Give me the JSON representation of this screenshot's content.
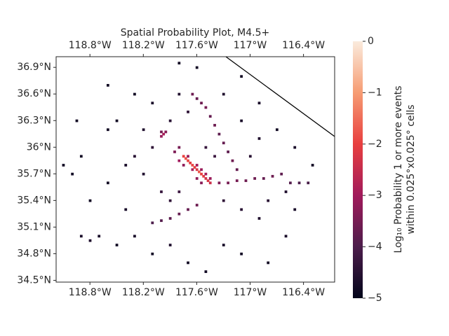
{
  "chart_data": {
    "type": "heatmap",
    "title": "Spatial Probability Plot, M4.5+",
    "xlim": [
      -119.18,
      -116.05
    ],
    "ylim": [
      34.48,
      37.02
    ],
    "cell_size": 0.025,
    "xticks": [
      {
        "value": -118.8,
        "label": "118.8°W"
      },
      {
        "value": -118.2,
        "label": "118.2°W"
      },
      {
        "value": -117.6,
        "label": "117.6°W"
      },
      {
        "value": -117,
        "label": "117°W"
      },
      {
        "value": -116.4,
        "label": "116.4°W"
      }
    ],
    "yticks": [
      {
        "value": 34.5,
        "label": "34.5°N"
      },
      {
        "value": 34.8,
        "label": "34.8°N"
      },
      {
        "value": 35.1,
        "label": "35.1°N"
      },
      {
        "value": 35.4,
        "label": "35.4°N"
      },
      {
        "value": 35.7,
        "label": "35.7°N"
      },
      {
        "value": 36,
        "label": "36°N"
      },
      {
        "value": 36.3,
        "label": "36.3°N"
      },
      {
        "value": 36.6,
        "label": "36.6°N"
      },
      {
        "value": 36.9,
        "label": "36.9°N"
      }
    ],
    "colormap": [
      "#03051a",
      "#4c1d4b",
      "#a11a5b",
      "#e83f3f",
      "#f69c73",
      "#faebdd"
    ],
    "colorbar": {
      "label": [
        "Log₁₀ Probability 1 or more events",
        "within 0.025°x0.025° cells"
      ],
      "lim": [
        -5,
        0
      ],
      "ticks": [
        {
          "value": -5,
          "label": "−5"
        },
        {
          "value": -4,
          "label": "−4"
        },
        {
          "value": -3,
          "label": "−3"
        },
        {
          "value": -2,
          "label": "−2"
        },
        {
          "value": -1,
          "label": "−1"
        },
        0
      ]
    },
    "cells": [
      [
        -117.75,
        35.9,
        -2.0
      ],
      [
        -117.725,
        35.875,
        -1.8
      ],
      [
        -117.7,
        35.85,
        -1.9
      ],
      [
        -117.675,
        35.825,
        -2.1
      ],
      [
        -117.65,
        35.8,
        -1.9
      ],
      [
        -117.625,
        35.775,
        -2.0
      ],
      [
        -117.6,
        35.75,
        -2.2
      ],
      [
        -117.575,
        35.725,
        -1.7
      ],
      [
        -117.55,
        35.7,
        -2.0
      ],
      [
        -117.525,
        35.675,
        -2.1
      ],
      [
        -117.5,
        35.65,
        -2.3
      ],
      [
        -117.475,
        35.625,
        -2.2
      ],
      [
        -117.45,
        35.6,
        -2.4
      ],
      [
        -117.8,
        35.85,
        -3.0
      ],
      [
        -117.7,
        35.9,
        -3.1
      ],
      [
        -117.75,
        35.8,
        -3.2
      ],
      [
        -117.65,
        35.75,
        -2.9
      ],
      [
        -117.6,
        35.8,
        -3.0
      ],
      [
        -117.55,
        35.75,
        -3.1
      ],
      [
        -117.6,
        35.65,
        -3.2
      ],
      [
        -117.5,
        35.7,
        -3.0
      ],
      [
        -117.45,
        35.65,
        -3.1
      ],
      [
        -117.55,
        35.6,
        -3.3
      ],
      [
        -117.85,
        35.95,
        -3.4
      ],
      [
        -117.8,
        36.0,
        -3.5
      ],
      [
        -117.975,
        36.15,
        -2.9
      ],
      [
        -118.0,
        36.125,
        -3.1
      ],
      [
        -117.95,
        36.175,
        -3.3
      ],
      [
        -118.0,
        36.175,
        -3.5
      ],
      [
        -117.65,
        36.6,
        -3.6
      ],
      [
        -117.6,
        36.55,
        -3.7
      ],
      [
        -117.55,
        36.5,
        -3.6
      ],
      [
        -117.5,
        36.45,
        -3.5
      ],
      [
        -117.45,
        36.35,
        -3.7
      ],
      [
        -117.4,
        36.25,
        -3.6
      ],
      [
        -117.35,
        36.15,
        -3.8
      ],
      [
        -117.3,
        36.05,
        -3.7
      ],
      [
        -117.25,
        35.95,
        -3.8
      ],
      [
        -117.2,
        35.85,
        -3.6
      ],
      [
        -117.15,
        35.75,
        -3.7
      ],
      [
        -117.35,
        35.6,
        -3.4
      ],
      [
        -117.25,
        35.6,
        -3.5
      ],
      [
        -117.15,
        35.625,
        -3.5
      ],
      [
        -117.05,
        35.625,
        -3.6
      ],
      [
        -116.95,
        35.65,
        -3.6
      ],
      [
        -116.85,
        35.65,
        -3.7
      ],
      [
        -116.75,
        35.675,
        -3.6
      ],
      [
        -116.65,
        35.7,
        -3.8
      ],
      [
        -116.55,
        35.6,
        -3.9
      ],
      [
        -116.45,
        35.6,
        -4.0
      ],
      [
        -116.35,
        35.6,
        -4.1
      ],
      [
        -117.6,
        35.35,
        -3.6
      ],
      [
        -117.7,
        35.3,
        -3.7
      ],
      [
        -117.8,
        35.25,
        -3.7
      ],
      [
        -117.9,
        35.2,
        -3.8
      ],
      [
        -118.0,
        35.175,
        -3.9
      ],
      [
        -118.1,
        35.15,
        -4.0
      ],
      [
        -118.3,
        35.9,
        -4.5
      ],
      [
        -118.2,
        35.7,
        -4.6
      ],
      [
        -118.1,
        36.0,
        -4.4
      ],
      [
        -118.2,
        36.2,
        -4.6
      ],
      [
        -118.4,
        35.8,
        -4.7
      ],
      [
        -118.0,
        35.5,
        -4.3
      ],
      [
        -117.9,
        35.4,
        -4.4
      ],
      [
        -117.8,
        35.5,
        -4.2
      ],
      [
        -117.9,
        36.3,
        -4.5
      ],
      [
        -117.7,
        36.4,
        -4.4
      ],
      [
        -117.8,
        36.6,
        -4.6
      ],
      [
        -118.1,
        36.5,
        -4.7
      ],
      [
        -117.5,
        36.0,
        -4.3
      ],
      [
        -117.4,
        35.9,
        -4.2
      ],
      [
        -117.3,
        35.4,
        -4.4
      ],
      [
        -117.1,
        35.3,
        -4.5
      ],
      [
        -116.9,
        35.2,
        -4.6
      ],
      [
        -116.8,
        35.4,
        -4.5
      ],
      [
        -116.6,
        35.5,
        -4.6
      ],
      [
        -117.0,
        35.9,
        -4.5
      ],
      [
        -116.9,
        36.1,
        -4.6
      ],
      [
        -117.1,
        36.3,
        -4.7
      ],
      [
        -117.3,
        36.6,
        -4.6
      ],
      [
        -117.6,
        36.9,
        -4.8
      ],
      [
        -117.8,
        36.95,
        -4.8
      ],
      [
        -118.3,
        36.6,
        -4.8
      ],
      [
        -118.6,
        36.2,
        -4.8
      ],
      [
        -118.9,
        35.9,
        -4.8
      ],
      [
        -119.0,
        35.7,
        -4.8
      ],
      [
        -118.8,
        35.4,
        -4.8
      ],
      [
        -118.9,
        35.0,
        -4.7
      ],
      [
        -118.8,
        34.95,
        -4.6
      ],
      [
        -118.7,
        35.0,
        -4.7
      ],
      [
        -118.5,
        34.9,
        -4.8
      ],
      [
        -118.3,
        35.0,
        -4.7
      ],
      [
        -118.1,
        34.8,
        -4.8
      ],
      [
        -117.9,
        34.9,
        -4.6
      ],
      [
        -117.7,
        34.7,
        -4.8
      ],
      [
        -117.5,
        34.6,
        -4.8
      ],
      [
        -117.3,
        34.9,
        -4.7
      ],
      [
        -117.1,
        34.8,
        -4.8
      ],
      [
        -116.8,
        34.7,
        -4.8
      ],
      [
        -116.6,
        35.0,
        -4.7
      ],
      [
        -116.5,
        35.3,
        -4.7
      ],
      [
        -116.3,
        35.8,
        -4.8
      ],
      [
        -116.5,
        36.0,
        -4.7
      ],
      [
        -116.7,
        36.2,
        -4.8
      ],
      [
        -116.9,
        36.5,
        -4.7
      ],
      [
        -117.1,
        36.8,
        -4.8
      ],
      [
        -118.5,
        36.3,
        -4.8
      ],
      [
        -118.4,
        35.3,
        -4.7
      ],
      [
        -118.6,
        35.6,
        -4.8
      ],
      [
        -119.1,
        35.8,
        -4.8
      ],
      [
        -118.95,
        36.3,
        -4.8
      ],
      [
        -118.6,
        36.7,
        -4.8
      ]
    ]
  }
}
